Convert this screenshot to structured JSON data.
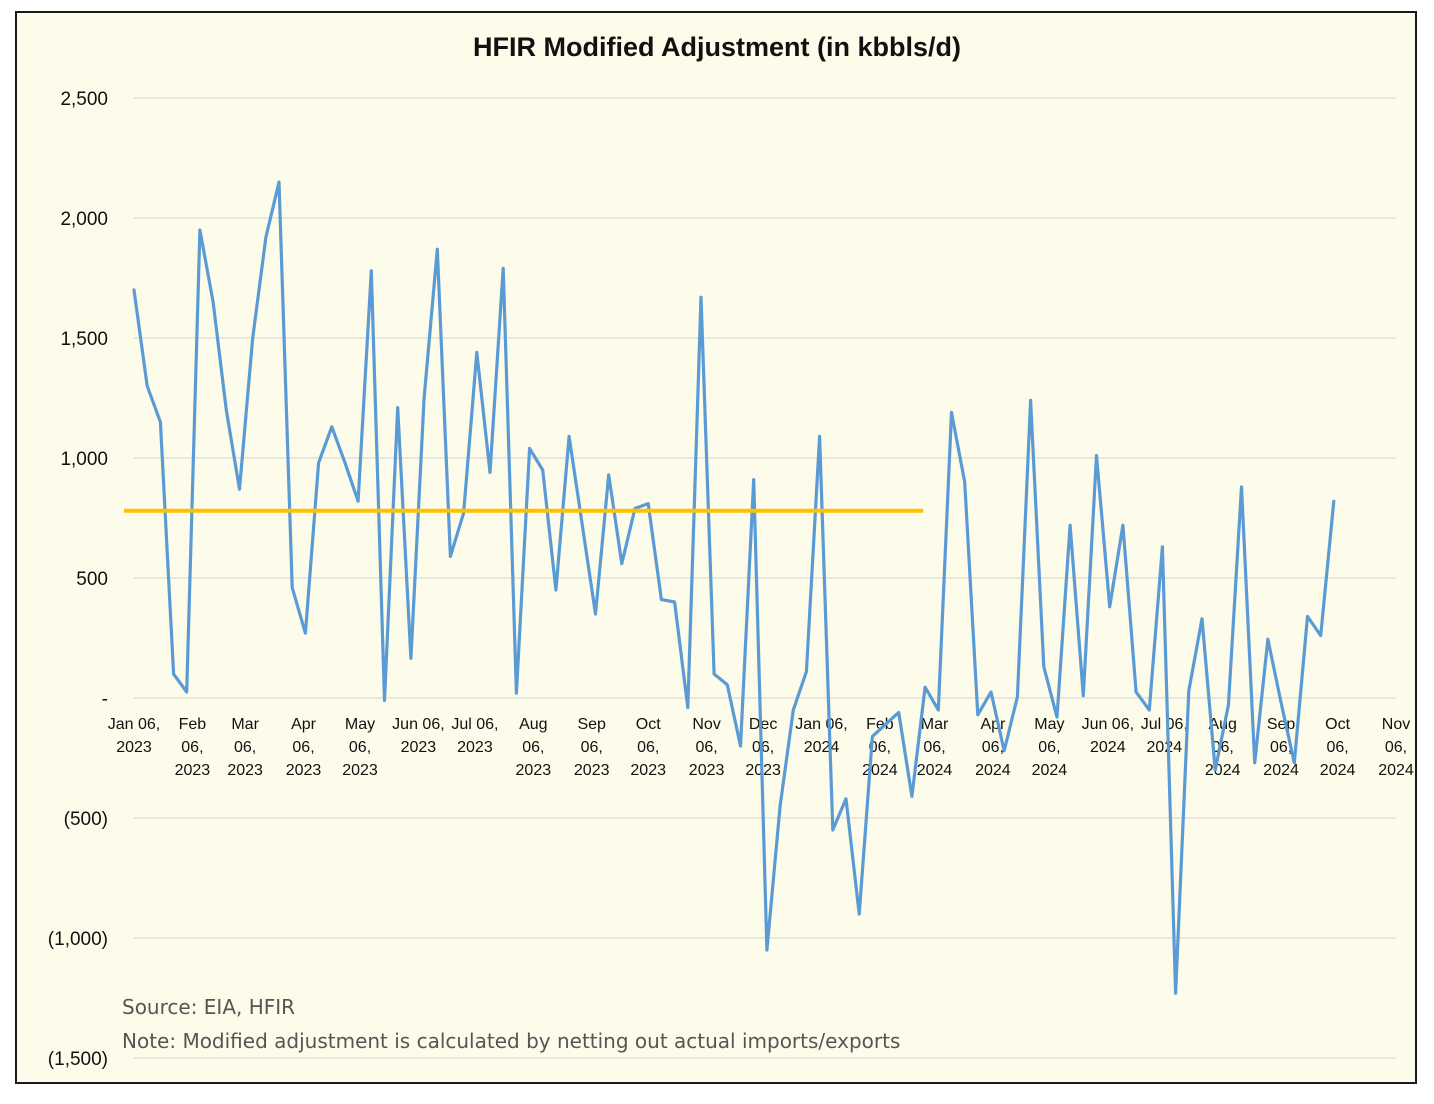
{
  "chart_data": {
    "type": "line",
    "title": "HFIR Modified Adjustment (in kbbls/d)",
    "xlabel": "",
    "ylabel": "",
    "ylim": [
      -1500,
      2500
    ],
    "y_ticks": [
      {
        "value": 2500,
        "label": "2,500"
      },
      {
        "value": 2000,
        "label": "2,000"
      },
      {
        "value": 1500,
        "label": "1,500"
      },
      {
        "value": 1000,
        "label": "1,000"
      },
      {
        "value": 500,
        "label": "500"
      },
      {
        "value": 0,
        "label": "-"
      },
      {
        "value": -500,
        "label": "(500)"
      },
      {
        "value": -1000,
        "label": "(1,000)"
      },
      {
        "value": -1500,
        "label": "(1,500)"
      }
    ],
    "x_range": [
      "2023-01-06",
      "2024-11-06"
    ],
    "x_ticks": [
      {
        "date": "2023-01-06",
        "label": [
          "Jan 06,",
          "2023"
        ]
      },
      {
        "date": "2023-02-06",
        "label": [
          "Feb",
          "06,",
          "2023"
        ]
      },
      {
        "date": "2023-03-06",
        "label": [
          "Mar",
          "06,",
          "2023"
        ]
      },
      {
        "date": "2023-04-06",
        "label": [
          "Apr",
          "06,",
          "2023"
        ]
      },
      {
        "date": "2023-05-06",
        "label": [
          "May",
          "06,",
          "2023"
        ]
      },
      {
        "date": "2023-06-06",
        "label": [
          "Jun 06,",
          "2023"
        ]
      },
      {
        "date": "2023-07-06",
        "label": [
          "Jul 06,",
          "2023"
        ]
      },
      {
        "date": "2023-08-06",
        "label": [
          "Aug",
          "06,",
          "2023"
        ]
      },
      {
        "date": "2023-09-06",
        "label": [
          "Sep",
          "06,",
          "2023"
        ]
      },
      {
        "date": "2023-10-06",
        "label": [
          "Oct",
          "06,",
          "2023"
        ]
      },
      {
        "date": "2023-11-06",
        "label": [
          "Nov",
          "06,",
          "2023"
        ]
      },
      {
        "date": "2023-12-06",
        "label": [
          "Dec",
          "06,",
          "2023"
        ]
      },
      {
        "date": "2024-01-06",
        "label": [
          "Jan 06,",
          "2024"
        ]
      },
      {
        "date": "2024-02-06",
        "label": [
          "Feb",
          "06,",
          "2024"
        ]
      },
      {
        "date": "2024-03-06",
        "label": [
          "Mar",
          "06,",
          "2024"
        ]
      },
      {
        "date": "2024-04-06",
        "label": [
          "Apr",
          "06,",
          "2024"
        ]
      },
      {
        "date": "2024-05-06",
        "label": [
          "May",
          "06,",
          "2024"
        ]
      },
      {
        "date": "2024-06-06",
        "label": [
          "Jun 06,",
          "2024"
        ]
      },
      {
        "date": "2024-07-06",
        "label": [
          "Jul 06,",
          "2024"
        ]
      },
      {
        "date": "2024-08-06",
        "label": [
          "Aug",
          "06,",
          "2024"
        ]
      },
      {
        "date": "2024-09-06",
        "label": [
          "Sep",
          "06,",
          "2024"
        ]
      },
      {
        "date": "2024-10-06",
        "label": [
          "Oct",
          "06,",
          "2024"
        ]
      },
      {
        "date": "2024-11-06",
        "label": [
          "Nov",
          "06,",
          "2024"
        ]
      }
    ],
    "grid": true,
    "series": [
      {
        "color": "#5b9bd5",
        "values": [
          1700,
          1300,
          1150,
          100,
          25,
          1950,
          1650,
          1200,
          870,
          1500,
          1920,
          2150,
          460,
          270,
          980,
          1130,
          980,
          820,
          1780,
          -10,
          1210,
          165,
          1250,
          1870,
          590,
          770,
          1440,
          940,
          1790,
          20,
          1040,
          950,
          450,
          1090,
          720,
          350,
          930,
          560,
          790,
          810,
          410,
          400,
          -40,
          1670,
          100,
          55,
          -200,
          910,
          -1050,
          -450,
          -50,
          110,
          1090,
          -550,
          -420,
          -900,
          -160,
          -110,
          -60,
          -410,
          45,
          -50,
          1190,
          900,
          -70,
          25,
          -220,
          5,
          1240,
          130,
          -80,
          720,
          10,
          1010,
          380,
          720,
          25,
          -50,
          630,
          -1230,
          30,
          330,
          -300,
          -30,
          880,
          -270,
          245,
          -20,
          -270,
          340,
          260,
          820
        ]
      },
      {
        "color": "#ffc000",
        "x": [
          "2023-01-06",
          "2024-02-29"
        ],
        "values": [
          780,
          780
        ]
      }
    ]
  },
  "footnotes": {
    "source": "Source: EIA, HFIR",
    "note": "Note: Modified adjustment is calculated by netting out actual imports/exports"
  }
}
